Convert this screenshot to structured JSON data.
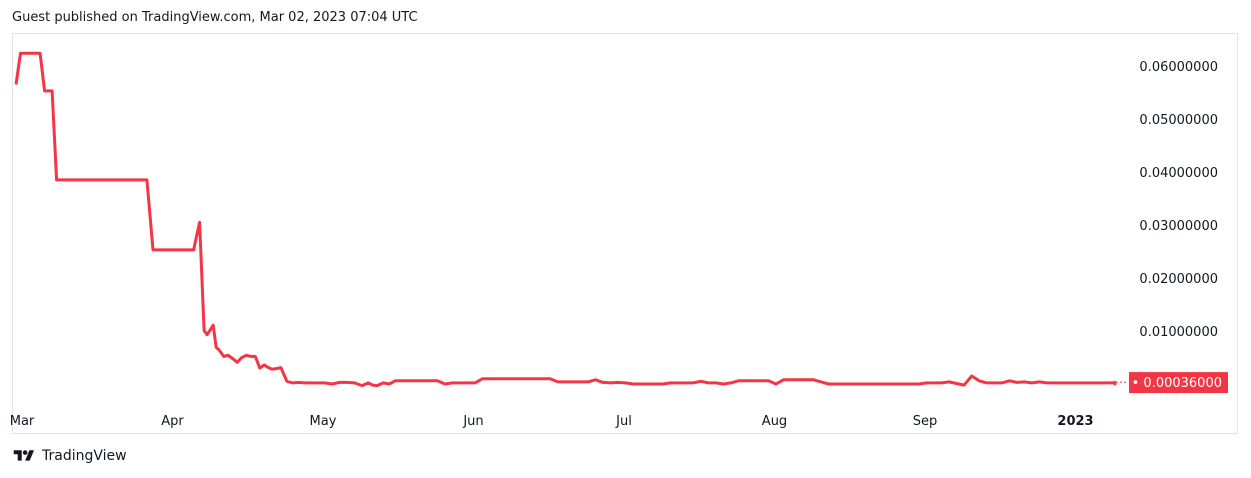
{
  "header": {
    "published_text": "Guest published on TradingView.com, Mar 02, 2023 07:04 UTC"
  },
  "footer": {
    "brand_label": "TradingView",
    "logo_icon": "tradingview-logo-icon"
  },
  "colors": {
    "line": "#f23645",
    "price_badge_bg": "#f23645",
    "price_badge_text": "#ffffff",
    "border": "#e0e3eb",
    "text": "#131722"
  },
  "chart_data": {
    "type": "line",
    "title": "",
    "xlabel": "",
    "ylabel": "",
    "ylim": [
      -0.00055,
      0.06545
    ],
    "x_tick_labels": [
      "Mar",
      "Apr",
      "May",
      "Jun",
      "Jul",
      "Aug",
      "Sep",
      "2023"
    ],
    "x_tick_positions": [
      0,
      1,
      2,
      3,
      4,
      5,
      6,
      7
    ],
    "y_tick_labels": [
      "0.06000000",
      "0.05000000",
      "0.04000000",
      "0.03000000",
      "0.02000000",
      "0.01000000"
    ],
    "y_tick_values": [
      0.06,
      0.05,
      0.04,
      0.03,
      0.02,
      0.01
    ],
    "last_price_label": "0.00036000",
    "last_price_value": 0.00036,
    "grid": false,
    "series": [
      {
        "x": [
          0,
          0.03,
          0.07,
          0.16,
          0.19,
          0.24,
          0.27,
          0.87,
          0.91,
          0.97,
          1.18,
          1.22,
          1.25,
          1.27,
          1.31,
          1.33,
          1.35,
          1.38,
          1.41,
          1.44,
          1.47,
          1.5,
          1.53,
          1.56,
          1.59,
          1.62,
          1.65,
          1.67,
          1.7,
          1.73,
          1.76,
          1.8,
          1.84,
          1.88,
          1.92,
          1.96,
          2.0,
          2.05,
          2.1,
          2.15,
          2.2,
          2.25,
          2.3,
          2.34,
          2.37,
          2.4,
          2.44,
          2.48,
          2.52,
          2.56,
          2.6,
          2.65,
          2.7,
          2.75,
          2.8,
          2.85,
          2.9,
          2.95,
          3.0,
          3.05,
          3.1,
          3.2,
          3.3,
          3.4,
          3.5,
          3.55,
          3.6,
          3.7,
          3.8,
          3.85,
          3.9,
          3.95,
          4.0,
          4.05,
          4.1,
          4.2,
          4.3,
          4.35,
          4.4,
          4.45,
          4.5,
          4.55,
          4.6,
          4.65,
          4.7,
          4.75,
          4.8,
          4.9,
          5.0,
          5.05,
          5.1,
          5.2,
          5.3,
          5.4,
          5.5,
          5.6,
          5.7,
          5.8,
          5.9,
          6.0,
          6.05,
          6.1,
          6.15,
          6.2,
          6.25,
          6.3,
          6.35,
          6.4,
          6.45,
          6.5,
          6.55,
          6.6,
          6.65,
          6.7,
          6.75,
          6.8,
          6.85,
          6.9,
          6.95,
          7.0,
          7.05,
          7.1,
          7.15,
          7.2,
          7.25,
          7.3,
          7.35,
          7.4,
          7.45,
          7.5,
          7.55,
          7.6,
          7.65,
          7.7
        ],
        "y": [
          0.0565,
          0.0624,
          0.0624,
          0.0624,
          0.0553,
          0.0553,
          0.0385,
          0.0385,
          0.0253,
          0.0253,
          0.0253,
          0.0305,
          0.0101,
          0.0093,
          0.0111,
          0.0069,
          0.0064,
          0.0052,
          0.0054,
          0.0048,
          0.0041,
          0.005,
          0.0054,
          0.0052,
          0.0052,
          0.003,
          0.0036,
          0.0032,
          0.0028,
          0.0029,
          0.0031,
          0.0005,
          0.0002,
          0.0003,
          0.0002,
          0.0002,
          0.0002,
          0.0002,
          0.0,
          0.0003,
          0.0003,
          0.0002,
          -0.0003,
          0.0002,
          -0.0002,
          -0.0003,
          0.0002,
          0.0,
          0.0006,
          0.0006,
          0.0006,
          0.0006,
          0.0006,
          0.0006,
          0.0006,
          0.0,
          0.0002,
          0.0002,
          0.0002,
          0.0002,
          0.001,
          0.001,
          0.001,
          0.001,
          0.001,
          0.001,
          0.0004,
          0.0004,
          0.0004,
          0.0008,
          0.0003,
          0.0002,
          0.0003,
          0.0002,
          0.0,
          0.0,
          0.0,
          0.0002,
          0.0002,
          0.0002,
          0.0002,
          0.0005,
          0.0002,
          0.0002,
          0.0,
          0.0002,
          0.0006,
          0.0006,
          0.0006,
          0.0,
          0.0008,
          0.0008,
          0.0008,
          0.0,
          0.0,
          0.0,
          0.0,
          0.0,
          0.0,
          0.0,
          0.0002,
          0.0002,
          0.0002,
          0.0004,
          0.0001,
          -0.0002,
          0.0015,
          0.0006,
          0.0002,
          0.0002,
          0.0002,
          0.0006,
          0.0003,
          0.0004,
          0.0002,
          0.0004,
          0.0002,
          0.0002,
          0.0002,
          0.0002,
          0.0002,
          0.0002,
          0.0002,
          0.0002,
          0.0002,
          0.0002,
          0.0003,
          0.0002,
          0.0,
          0.0003,
          0.0002,
          0.0002,
          0.0,
          0.00036
        ]
      }
    ]
  }
}
